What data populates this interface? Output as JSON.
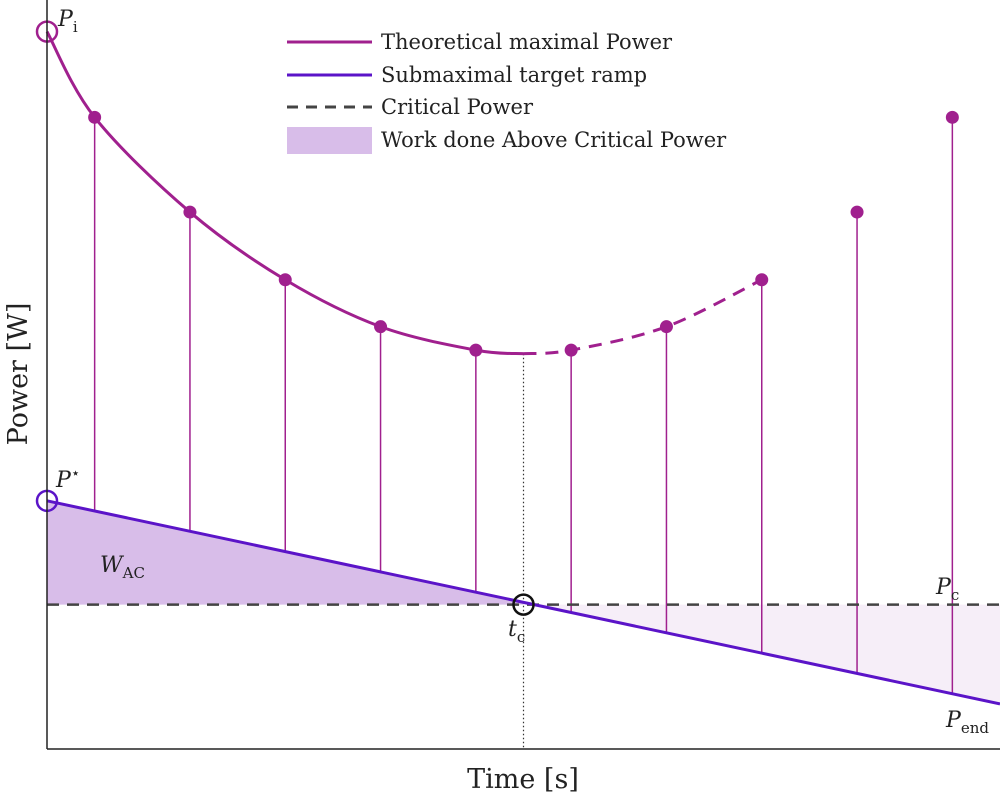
{
  "chart_data": {
    "type": "line",
    "xlabel": "Time [s]",
    "ylabel": "Power [W]",
    "xlim": [
      0,
      10
    ],
    "ylim": [
      0,
      8.3
    ],
    "grid": false,
    "legend": {
      "placement": "top-center"
    },
    "series": [
      {
        "name": "Theoretical maximal Power",
        "color": "#a0208e",
        "style": "solid-then-dashed",
        "x": [
          0,
          0.5,
          1.5,
          2.5,
          3.5,
          4.5,
          5.0,
          5.5,
          6.5,
          7.5
        ],
        "y": [
          7.95,
          7.0,
          5.95,
          5.2,
          4.68,
          4.42,
          4.38,
          4.42,
          4.68,
          5.2
        ],
        "solid_until_x": 5.0
      },
      {
        "name": "Submaximal target ramp",
        "color": "#5b14c8",
        "style": "solid",
        "x": [
          0,
          10
        ],
        "y": [
          2.75,
          0.5
        ]
      },
      {
        "name": "Critical Power",
        "color": "#444444",
        "style": "dashed",
        "x": [
          0,
          10
        ],
        "y": [
          1.6,
          1.6
        ]
      }
    ],
    "stems": {
      "color": "#a0208e",
      "x": [
        0.5,
        1.5,
        2.5,
        3.5,
        4.5,
        5.5,
        6.5,
        7.5,
        8.5,
        9.5
      ],
      "top": [
        7.0,
        5.95,
        5.2,
        4.68,
        4.42,
        4.42,
        4.68,
        5.2,
        5.95,
        7.0
      ]
    },
    "shaded_area": {
      "name": "Work done Above Critical Power",
      "color": "#d8bde9",
      "between": [
        "Submaximal target ramp",
        "Critical Power"
      ],
      "x_range": [
        0,
        5.0
      ]
    },
    "light_shaded_area": {
      "color": "#f6eef8",
      "between": [
        "Critical Power",
        "Submaximal target ramp"
      ],
      "x_range": [
        5.0,
        10
      ]
    },
    "vertical_marker": {
      "x": 5.0,
      "style": "dotted",
      "color": "#333333"
    },
    "annotations": {
      "P_i": {
        "base": "P",
        "sub": "i",
        "x": 0,
        "y": 7.95
      },
      "P_star": {
        "base": "P",
        "sup": "⋆",
        "x": 0,
        "y": 2.75
      },
      "W_AC": {
        "base": "W",
        "sub": "AC",
        "x": 0.55,
        "y": 1.85
      },
      "t_c": {
        "base": "t",
        "sub": "c",
        "x": 5.0,
        "y": 1.6
      },
      "P_c": {
        "base": "P",
        "sub": "c",
        "x": 9.6,
        "y": 1.6
      },
      "P_end": {
        "base": "P",
        "sub": "end",
        "x": 9.6,
        "y": 0.5
      }
    }
  }
}
